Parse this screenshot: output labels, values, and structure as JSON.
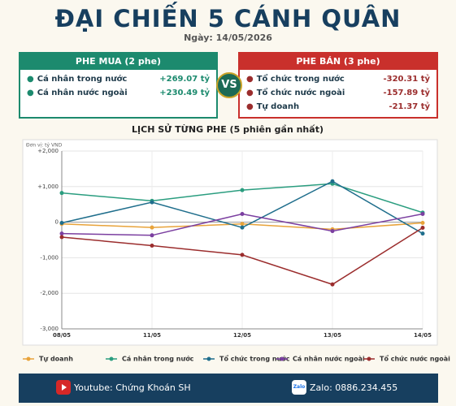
{
  "header": {
    "title": "ĐẠI CHIẾN 5 CÁNH QUÂN",
    "date": "Ngày: 14/05/2026"
  },
  "buy": {
    "title": "PHE MUA  (2 phe)",
    "items": [
      {
        "name": "Cá nhân trong nước",
        "value": "+269.07 tỷ"
      },
      {
        "name": "Cá nhân nước ngoài",
        "value": "+230.49 tỷ"
      }
    ]
  },
  "vs": "VS",
  "sell": {
    "title": "PHE BÁN  (3 phe)",
    "items": [
      {
        "name": "Tổ chức trong nước",
        "value": "-320.31 tỷ"
      },
      {
        "name": "Tổ chức nước ngoài",
        "value": "-157.89 tỷ"
      },
      {
        "name": "Tự doanh",
        "value": "-21.37 tỷ"
      }
    ]
  },
  "chart_data": {
    "type": "line",
    "title": "LỊCH SỬ TỪNG PHE (5 phiên gần nhất)",
    "unit_label": "Đơn vị: tỷ VND",
    "categories": [
      "08/05",
      "11/05",
      "12/05",
      "13/05",
      "14/05"
    ],
    "series": [
      {
        "name": "Tự doanh",
        "color": "#e8a33a",
        "values": [
          -50,
          -150,
          -50,
          -200,
          -21.37
        ]
      },
      {
        "name": "Cá nhân trong nước",
        "color": "#2a9d7f",
        "values": [
          820,
          600,
          900,
          1080,
          269.07
        ]
      },
      {
        "name": "Tổ chức trong nước",
        "color": "#1f6e8c",
        "values": [
          -20,
          560,
          -150,
          1150,
          -320.31
        ]
      },
      {
        "name": "Cá nhân nước ngoài",
        "color": "#7b3fa0",
        "values": [
          -320,
          -370,
          230,
          -250,
          230.49
        ]
      },
      {
        "name": "Tổ chức nước ngoài",
        "color": "#9b2d2d",
        "values": [
          -420,
          -660,
          -920,
          -1750,
          -157.89
        ]
      }
    ],
    "ylim": [
      -3000,
      2000
    ],
    "yticks": [
      {
        "value": 2000,
        "label": "+2,000"
      },
      {
        "value": 1000,
        "label": "+1,000"
      },
      0,
      {
        "value": -1000,
        "label": "-1,000"
      },
      {
        "value": -2000,
        "label": "-2,000"
      },
      {
        "value": -3000,
        "label": "-3,000"
      }
    ],
    "grid": true,
    "legend": "bottom"
  },
  "footer": {
    "youtube": "Youtube: Chứng Khoán SH",
    "zalo_icon": "Zalo",
    "zalo": "Zalo: 0886.234.455"
  }
}
